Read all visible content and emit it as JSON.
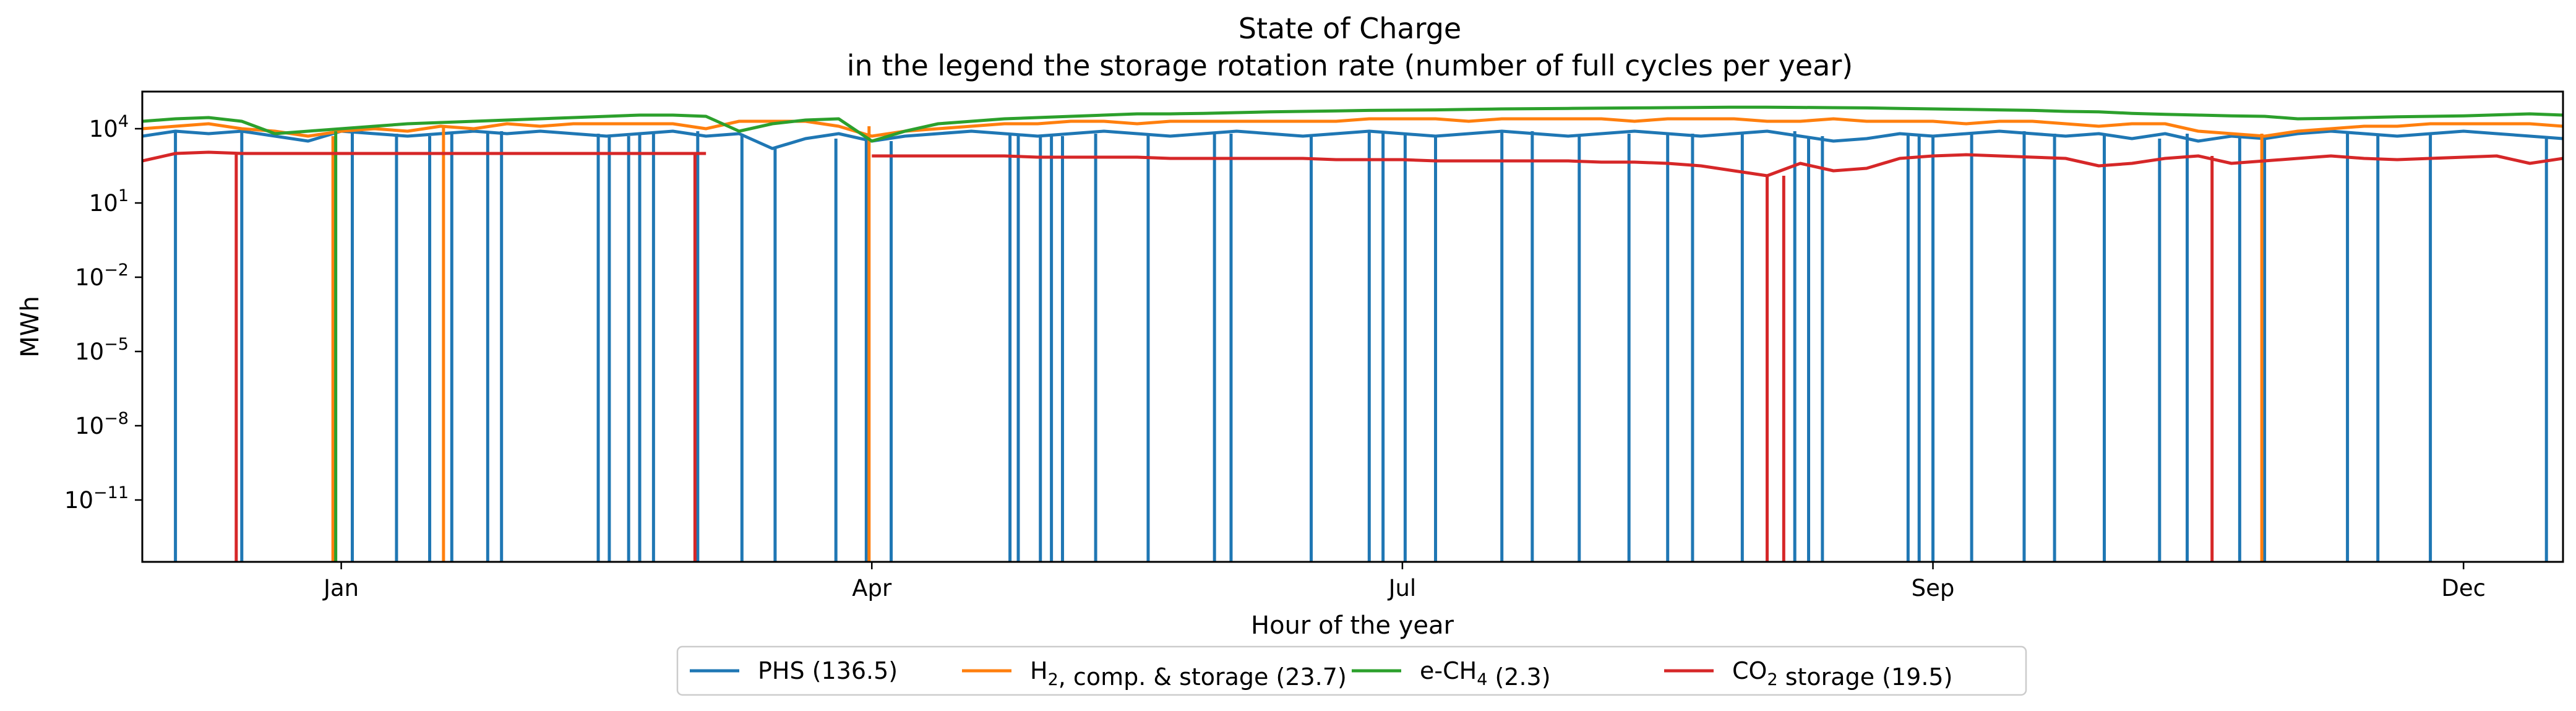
{
  "chart_data": {
    "type": "line",
    "title": "State of Charge",
    "subtitle": "in the legend the storage rotation rate (number of full cycles per year)",
    "xlabel": "Hour of the year",
    "ylabel": "MWh",
    "yscale": "log",
    "ylim_exponents": [
      -13.5,
      5.5
    ],
    "x_range_hours": [
      0,
      8760
    ],
    "x_ticks": [
      {
        "label": "Jan",
        "hour": 720
      },
      {
        "label": "Apr",
        "hour": 2640
      },
      {
        "label": "Jul",
        "hour": 4560
      },
      {
        "label": "Sep",
        "hour": 6480
      },
      {
        "label": "Dec",
        "hour": 8400
      }
    ],
    "y_ticks": [
      {
        "base": "10",
        "exp": "4",
        "value": 4
      },
      {
        "base": "10",
        "exp": "1",
        "value": 1
      },
      {
        "base": "10",
        "exp": "−2",
        "value": -2
      },
      {
        "base": "10",
        "exp": "−5",
        "value": -5
      },
      {
        "base": "10",
        "exp": "−8",
        "value": -8
      },
      {
        "base": "10",
        "exp": "−11",
        "value": -11
      }
    ],
    "grid": false,
    "legend_position": "bottom-center",
    "series": [
      {
        "name": "PHS (136.5)",
        "color": "#1f77b4",
        "x_hours": [
          0,
          120,
          240,
          360,
          480,
          600,
          720,
          840,
          960,
          1080,
          1200,
          1320,
          1440,
          1560,
          1680,
          1800,
          1920,
          2040,
          2160,
          2280,
          2400,
          2520,
          2640,
          2760,
          2880,
          3000,
          3120,
          3240,
          3360,
          3480,
          3600,
          3720,
          3840,
          3960,
          4080,
          4200,
          4320,
          4440,
          4560,
          4680,
          4800,
          4920,
          5040,
          5160,
          5280,
          5400,
          5520,
          5640,
          5760,
          5880,
          6000,
          6120,
          6240,
          6360,
          6480,
          6600,
          6720,
          6840,
          6960,
          7080,
          7200,
          7320,
          7440,
          7560,
          7680,
          7800,
          7920,
          8040,
          8160,
          8280,
          8400,
          8520,
          8640,
          8760
        ],
        "y_log10": [
          3.7,
          3.9,
          3.8,
          3.9,
          3.7,
          3.5,
          3.9,
          3.8,
          3.7,
          3.8,
          3.9,
          3.8,
          3.9,
          3.8,
          3.7,
          3.8,
          3.9,
          3.7,
          3.8,
          3.2,
          3.6,
          3.8,
          3.5,
          3.7,
          3.8,
          3.9,
          3.8,
          3.7,
          3.8,
          3.9,
          3.8,
          3.7,
          3.8,
          3.9,
          3.8,
          3.7,
          3.8,
          3.9,
          3.8,
          3.7,
          3.8,
          3.9,
          3.8,
          3.7,
          3.8,
          3.9,
          3.8,
          3.7,
          3.8,
          3.9,
          3.7,
          3.5,
          3.6,
          3.8,
          3.7,
          3.8,
          3.9,
          3.8,
          3.7,
          3.8,
          3.6,
          3.8,
          3.5,
          3.7,
          3.6,
          3.8,
          3.9,
          3.8,
          3.7,
          3.8,
          3.9,
          3.8,
          3.7,
          3.6
        ],
        "dropouts_hours": [
          120,
          360,
          760,
          920,
          1040,
          1120,
          1250,
          1300,
          1650,
          1690,
          1760,
          1800,
          1850,
          2010,
          2170,
          2290,
          2510,
          2620,
          2710,
          3140,
          3170,
          3250,
          3290,
          3330,
          3450,
          3640,
          3880,
          3940,
          4230,
          4440,
          4490,
          4570,
          4680,
          4920,
          5030,
          5200,
          5380,
          5520,
          5610,
          5790,
          5980,
          6030,
          6080,
          6390,
          6430,
          6480,
          6620,
          6810,
          6920,
          7100,
          7300,
          7400,
          7590,
          7680,
          7980,
          8090,
          8280,
          8700
        ]
      },
      {
        "name": "H2, comp. & storage (23.7)",
        "color": "#ff7f0e",
        "x_hours": [
          0,
          120,
          240,
          360,
          480,
          600,
          720,
          840,
          960,
          1080,
          1200,
          1320,
          1440,
          1560,
          1680,
          1800,
          1920,
          2040,
          2160,
          2280,
          2400,
          2520,
          2640,
          2760,
          2880,
          3000,
          3120,
          3240,
          3360,
          3480,
          3600,
          3720,
          3840,
          3960,
          4080,
          4200,
          4320,
          4440,
          4560,
          4680,
          4800,
          4920,
          5040,
          5160,
          5280,
          5400,
          5520,
          5640,
          5760,
          5880,
          6000,
          6120,
          6240,
          6360,
          6480,
          6600,
          6720,
          6840,
          6960,
          7080,
          7200,
          7320,
          7440,
          7560,
          7680,
          7800,
          7920,
          8040,
          8160,
          8280,
          8400,
          8520,
          8640,
          8760
        ],
        "y_log10": [
          4.0,
          4.1,
          4.2,
          4.0,
          3.9,
          3.7,
          3.9,
          4.0,
          3.9,
          4.1,
          4.0,
          4.2,
          4.1,
          4.2,
          4.2,
          4.2,
          4.2,
          4.0,
          4.3,
          4.3,
          4.3,
          4.1,
          3.7,
          3.9,
          4.0,
          4.1,
          4.2,
          4.2,
          4.3,
          4.3,
          4.2,
          4.3,
          4.3,
          4.3,
          4.3,
          4.3,
          4.3,
          4.4,
          4.4,
          4.4,
          4.3,
          4.4,
          4.4,
          4.4,
          4.4,
          4.3,
          4.4,
          4.4,
          4.4,
          4.3,
          4.3,
          4.4,
          4.3,
          4.3,
          4.3,
          4.2,
          4.3,
          4.3,
          4.2,
          4.1,
          4.2,
          4.2,
          3.9,
          3.8,
          3.7,
          3.9,
          4.0,
          4.1,
          4.1,
          4.2,
          4.2,
          4.2,
          4.2,
          4.1
        ],
        "dropouts_hours": [
          690,
          1090,
          2630,
          7670
        ]
      },
      {
        "name": "e-CH4 (2.3)",
        "color": "#2ca02c",
        "x_hours": [
          0,
          120,
          240,
          360,
          480,
          600,
          720,
          840,
          960,
          1080,
          1200,
          1320,
          1440,
          1560,
          1680,
          1800,
          1920,
          2040,
          2160,
          2280,
          2400,
          2520,
          2640,
          2760,
          2880,
          3000,
          3120,
          3240,
          3360,
          3480,
          3600,
          3720,
          3840,
          3960,
          4080,
          4200,
          4320,
          4440,
          4560,
          4680,
          4800,
          4920,
          5040,
          5160,
          5280,
          5400,
          5520,
          5640,
          5760,
          5880,
          6000,
          6120,
          6240,
          6360,
          6480,
          6600,
          6720,
          6840,
          6960,
          7080,
          7200,
          7320,
          7440,
          7560,
          7680,
          7800,
          7920,
          8040,
          8160,
          8280,
          8400,
          8520,
          8640,
          8760
        ],
        "y_log10": [
          4.3,
          4.4,
          4.45,
          4.3,
          3.8,
          3.9,
          4.0,
          4.1,
          4.2,
          4.25,
          4.3,
          4.35,
          4.4,
          4.45,
          4.5,
          4.55,
          4.55,
          4.5,
          3.9,
          4.2,
          4.35,
          4.4,
          3.5,
          3.9,
          4.2,
          4.3,
          4.4,
          4.45,
          4.5,
          4.55,
          4.6,
          4.6,
          4.62,
          4.65,
          4.68,
          4.7,
          4.72,
          4.74,
          4.75,
          4.76,
          4.78,
          4.8,
          4.81,
          4.82,
          4.83,
          4.84,
          4.85,
          4.86,
          4.87,
          4.87,
          4.86,
          4.85,
          4.84,
          4.82,
          4.8,
          4.78,
          4.76,
          4.74,
          4.7,
          4.68,
          4.62,
          4.58,
          4.55,
          4.52,
          4.5,
          4.4,
          4.42,
          4.45,
          4.48,
          4.5,
          4.52,
          4.56,
          4.6,
          4.55
        ],
        "dropouts_hours": [
          700
        ]
      },
      {
        "name": "CO2 storage (19.5)",
        "color": "#d62728",
        "x_hours": [
          0,
          120,
          240,
          360,
          480,
          600,
          720,
          840,
          960,
          1080,
          1200,
          1320,
          1440,
          1560,
          1680,
          1800,
          1920,
          2040,
          2160,
          2280,
          2400,
          2520,
          2640,
          2760,
          2880,
          3000,
          3120,
          3240,
          3360,
          3480,
          3600,
          3720,
          3840,
          3960,
          4080,
          4200,
          4320,
          4440,
          4560,
          4680,
          4800,
          4920,
          5040,
          5160,
          5280,
          5400,
          5520,
          5640,
          5760,
          5880,
          6000,
          6120,
          6240,
          6360,
          6480,
          6600,
          6720,
          6840,
          6960,
          7080,
          7200,
          7320,
          7440,
          7560,
          7680,
          7800,
          7920,
          8040,
          8160,
          8280,
          8400,
          8520,
          8640,
          8760
        ],
        "y_log10": [
          2.7,
          3.0,
          3.05,
          3.0,
          3.0,
          3.0,
          3.0,
          3.0,
          3.0,
          3.0,
          3.0,
          3.0,
          3.0,
          3.0,
          3.0,
          3.0,
          3.0,
          3.0,
          null,
          null,
          null,
          null,
          2.9,
          2.9,
          2.9,
          2.9,
          2.9,
          2.85,
          2.85,
          2.85,
          2.85,
          2.8,
          2.8,
          2.8,
          2.8,
          2.8,
          2.75,
          2.75,
          2.75,
          2.7,
          2.7,
          2.7,
          2.7,
          2.7,
          2.65,
          2.65,
          2.6,
          2.5,
          2.3,
          2.1,
          2.6,
          2.3,
          2.4,
          2.8,
          2.9,
          2.95,
          2.9,
          2.85,
          2.8,
          2.5,
          2.6,
          2.8,
          2.9,
          2.6,
          2.7,
          2.8,
          2.9,
          2.8,
          2.75,
          2.8,
          2.85,
          2.9,
          2.6,
          2.8
        ],
        "dropouts_hours": [
          340,
          2000,
          5880,
          5940,
          7490
        ]
      }
    ]
  }
}
